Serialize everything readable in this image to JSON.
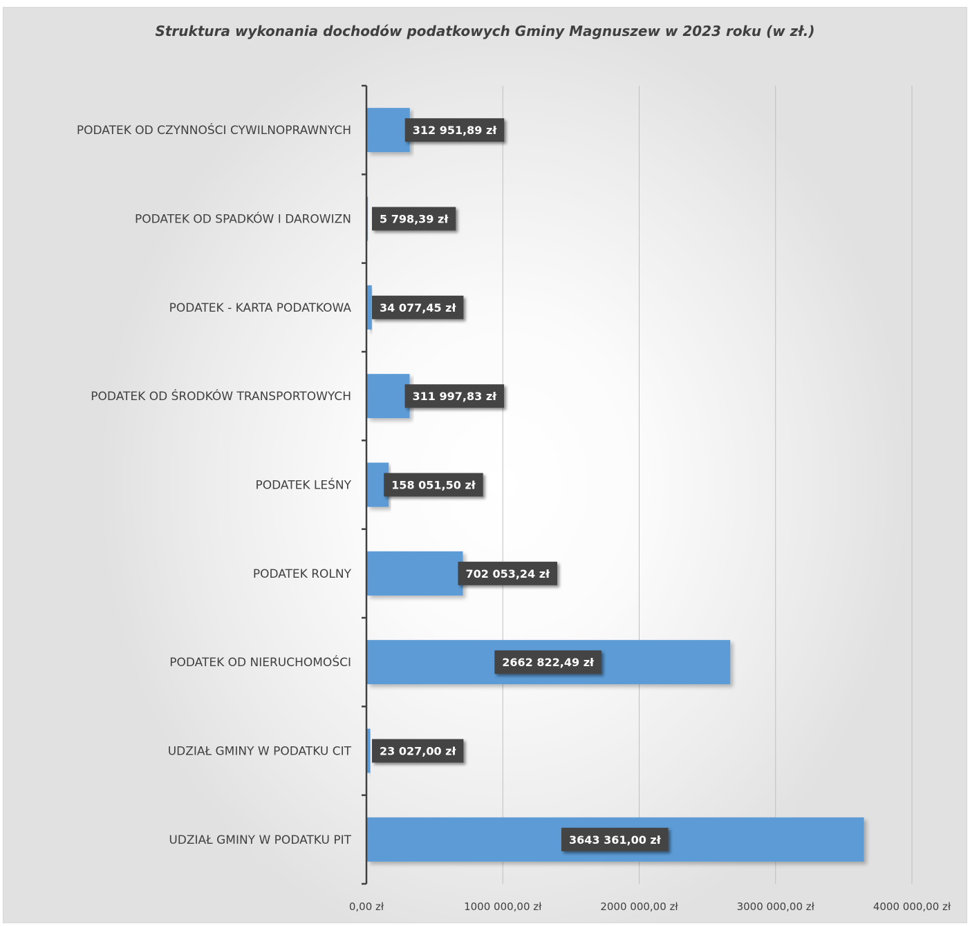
{
  "chart_data": {
    "type": "bar",
    "orientation": "horizontal",
    "title": "Struktura wykonania dochodów podatkowych Gminy Magnuszew w 2023 roku (w zł.)",
    "categories": [
      "PODATEK OD CZYNNOŚCI CYWILNOPRAWNYCH",
      "PODATEK OD SPADKÓW I DAROWIZN",
      "PODATEK - KARTA PODATKOWA",
      "PODATEK OD ŚRODKÓW TRANSPORTOWYCH",
      "PODATEK LEŚNY",
      "PODATEK ROLNY",
      "PODATEK OD NIERUCHOMOŚCI",
      "UDZIAŁ GMINY W PODATKU CIT",
      "UDZIAŁ GMINY W PODATKU PIT"
    ],
    "values": [
      312951.89,
      5798.39,
      34077.45,
      311997.83,
      158051.5,
      702053.24,
      2662822.49,
      23027.0,
      3643361.0
    ],
    "data_labels": [
      "312 951,89 zł",
      "5 798,39 zł",
      "34 077,45 zł",
      "311 997,83 zł",
      "158 051,50 zł",
      "702 053,24 zł",
      "2662 822,49 zł",
      "23 027,00 zł",
      "3643 361,00 zł"
    ],
    "xlim": [
      0,
      4000000
    ],
    "xticks": [
      0,
      1000000,
      2000000,
      3000000,
      4000000
    ],
    "xtick_labels": [
      "0,00 zł",
      "1000 000,00 zł",
      "2000 000,00 zł",
      "3000 000,00 zł",
      "4000 000,00 zł"
    ],
    "grid": true,
    "legend": "none",
    "bar_color": "#5b9bd5",
    "label_bg_color": "#404040",
    "gridline_color": "#bfbfbf",
    "axis_color": "#404040"
  }
}
